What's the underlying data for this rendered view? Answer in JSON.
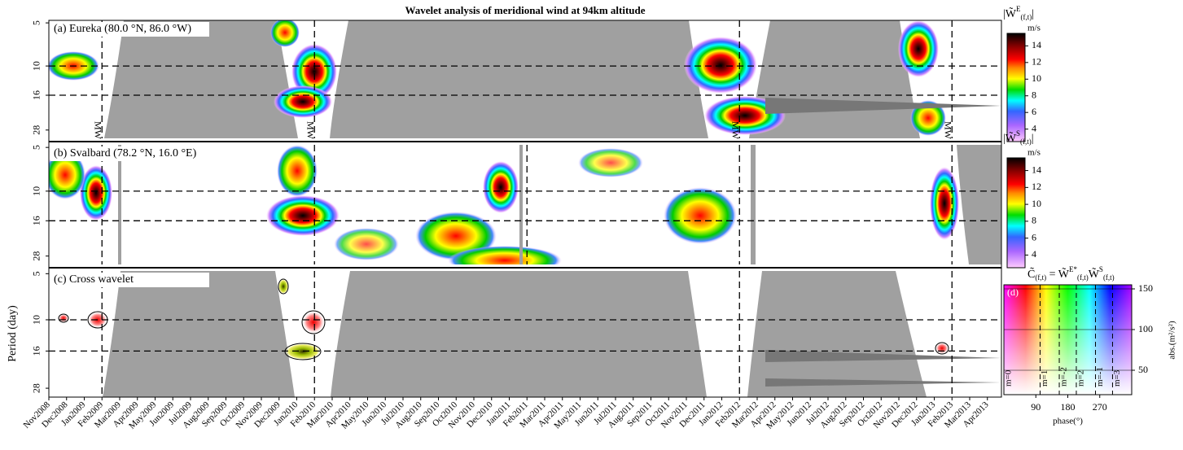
{
  "title": "Wavelet analysis of meridional wind at 94km altitude",
  "x_axis": {
    "categories": [
      "Nov2008",
      "Dec2008",
      "Jan2009",
      "Feb2009",
      "Mar2009",
      "Apr2009",
      "May2009",
      "Jun2009",
      "Jul2009",
      "Aug2009",
      "Sep2009",
      "Oct2009",
      "Nov2009",
      "Dec2009",
      "Jan2010",
      "Feb2010",
      "Mar2010",
      "Apr2010",
      "May2010",
      "Jun2010",
      "Jul2010",
      "Aug2010",
      "Sep2010",
      "Oct2010",
      "Nov2010",
      "Dec2010",
      "Jan2011",
      "Feb2011",
      "Mar2011",
      "Apr2011",
      "May2011",
      "Jun2011",
      "Jul2011",
      "Aug2011",
      "Sep2011",
      "Oct2011",
      "Nov2011",
      "Dec2011",
      "Jan2012",
      "Feb2012",
      "Mar2012",
      "Apr2012",
      "May2012",
      "Jun2012",
      "Jul2012",
      "Aug2012",
      "Sep2012",
      "Oct2012",
      "Nov2012",
      "Dec2012",
      "Jan2013",
      "Feb2013",
      "Mar2013",
      "Apr2013"
    ],
    "events": [
      {
        "date": "Feb2009",
        "label": "MW"
      },
      {
        "date": "Feb2010",
        "label": "MW"
      },
      {
        "date": "Feb2012",
        "label": "MW"
      },
      {
        "date": "Feb2013",
        "label": "MW"
      }
    ]
  },
  "y_axis": {
    "label": "Period (day)",
    "ticks": [
      5,
      10,
      16,
      28
    ],
    "lim": [
      4.8,
      32
    ],
    "log": true,
    "dashed_periods": [
      10,
      16
    ]
  },
  "panels": [
    {
      "label": "(a) Eureka (80.0 °N, 86.0 °W)",
      "dashed_dates": [
        "Feb2009",
        "Feb2010",
        "Feb2012",
        "Feb2013"
      ],
      "colorbar": {
        "base": "|W̃",
        "sup": "E",
        "sub": "(f,t)",
        "close": "|",
        "unit": "m/s"
      }
    },
    {
      "label": "(b) Svalbard (78.2 °N, 16.0 °E)",
      "dashed_dates": [
        "Feb2009",
        "Feb2010",
        "Feb2011",
        "Feb2012",
        "Feb2013"
      ],
      "colorbar": {
        "base": "|W̃",
        "sup": "S",
        "sub": "(f,t)",
        "close": "|",
        "unit": "m/s"
      }
    },
    {
      "label": "(c) Cross wavelet",
      "dashed_dates": [
        "Feb2009",
        "Feb2010",
        "Feb2012",
        "Feb2013"
      ]
    }
  ],
  "colorbar_scale": {
    "ticks": [
      4,
      6,
      8,
      10,
      12,
      14
    ],
    "lim": [
      2.5,
      15.5
    ]
  },
  "cross": {
    "formula": {
      "lhs": "C̃",
      "lhs_sub": "(f,t)",
      "eq": " = W̃",
      "sup1": "E*",
      "sub1": "(f,t)",
      "mid": "W̃",
      "sup2": "S",
      "sub2": "(f,t)"
    },
    "label": "(d)",
    "xlabel": "phase(°)",
    "xticks": [
      90,
      180,
      270
    ],
    "xlim": [
      0,
      360
    ],
    "ylabel": "abs.(m²/s²)",
    "yticks": [
      50,
      100,
      150
    ],
    "ylim": [
      20,
      155
    ],
    "modes": [
      {
        "label": "m=0",
        "phase": 0
      },
      {
        "label": "m=1",
        "phase": 102
      },
      {
        "label": "m=-2",
        "phase": 156
      },
      {
        "label": "m=2",
        "phase": 204
      },
      {
        "label": "m=-1",
        "phase": 258
      },
      {
        "label": "m=3",
        "phase": 306
      }
    ]
  }
}
